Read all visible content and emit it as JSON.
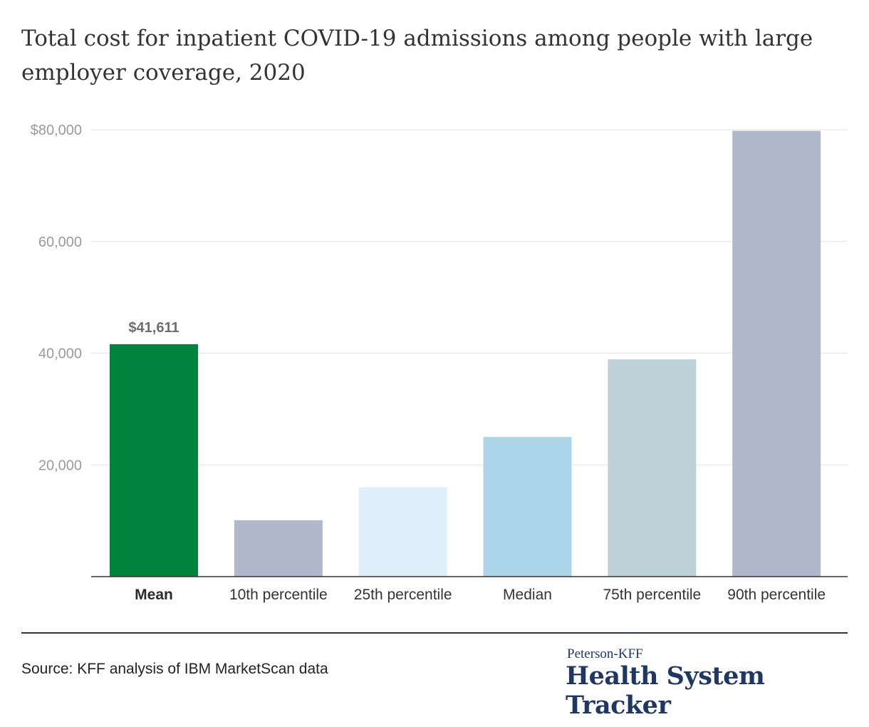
{
  "title": "Total cost for inpatient COVID-19 admissions among people with large employer coverage, 2020",
  "source": "Source: KFF analysis of IBM MarketScan data",
  "brand": {
    "top": "Peterson-KFF",
    "main": "Health System Tracker"
  },
  "chart_data": {
    "type": "bar",
    "categories": [
      "Mean",
      "10th percentile",
      "25th percentile",
      "Median",
      "75th percentile",
      "90th percentile"
    ],
    "values": [
      41611,
      10100,
      16000,
      25000,
      38900,
      79800
    ],
    "colors": [
      "#00843d",
      "#b2b8cb",
      "#e0f0fa",
      "#acd5ea",
      "#bfd1d9",
      "#b2b8cb"
    ],
    "data_labels": {
      "0": "$41,611"
    },
    "bold_categories": [
      0
    ],
    "ylim": [
      0,
      80000
    ],
    "yticks": [
      20000,
      40000,
      60000,
      80000
    ],
    "ytick_labels": [
      "20,000",
      "40,000",
      "60,000",
      "$80,000"
    ],
    "grid": true,
    "xlabel": "",
    "ylabel": ""
  }
}
